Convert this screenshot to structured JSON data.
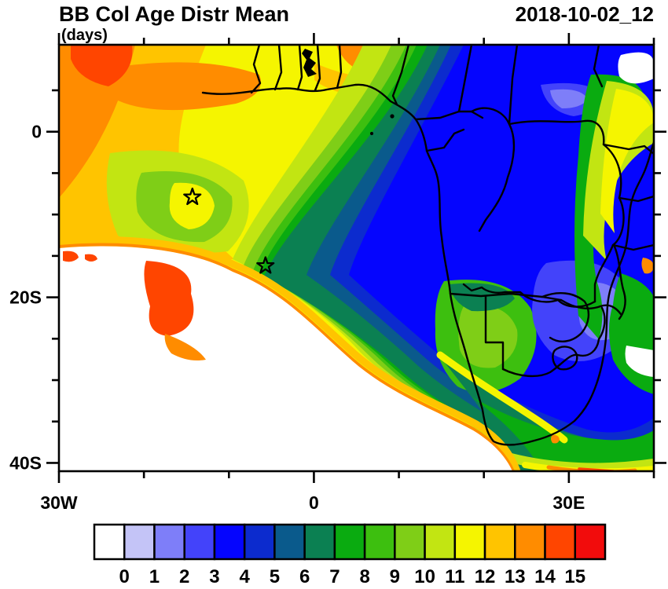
{
  "figure": {
    "title": "BB Col Age Distr Mean",
    "subtitle": "(days)",
    "datetime": "2018-10-02_12"
  },
  "chart_data": {
    "type": "heatmap",
    "subtype": "filled-contour-geographic-map",
    "variable": "BB Col Age Distr Mean",
    "units": "days",
    "timestamp": "2018-10-02_12",
    "map_region": "Southern Africa and tropical Atlantic / Gulf of Guinea",
    "lon_range_deg": [
      -30,
      40
    ],
    "lat_range_deg": [
      -41,
      10.5
    ],
    "grid": "off",
    "x_axis": {
      "ticks": [
        {
          "lon": -30,
          "label": "30W",
          "major": true
        },
        {
          "lon": -20,
          "label": "",
          "major": false
        },
        {
          "lon": -10,
          "label": "",
          "major": false
        },
        {
          "lon": 0,
          "label": "0",
          "major": true
        },
        {
          "lon": 10,
          "label": "",
          "major": false
        },
        {
          "lon": 20,
          "label": "",
          "major": false
        },
        {
          "lon": 30,
          "label": "30E",
          "major": true
        },
        {
          "lon": 40,
          "label": "",
          "major": false
        }
      ]
    },
    "y_axis": {
      "ticks": [
        {
          "lat": 5,
          "label": "",
          "major": false
        },
        {
          "lat": 0,
          "label": "0",
          "major": true
        },
        {
          "lat": -5,
          "label": "",
          "major": false
        },
        {
          "lat": -10,
          "label": "",
          "major": false
        },
        {
          "lat": -15,
          "label": "",
          "major": false
        },
        {
          "lat": -20,
          "label": "20S",
          "major": true
        },
        {
          "lat": -25,
          "label": "",
          "major": false
        },
        {
          "lat": -30,
          "label": "",
          "major": false
        },
        {
          "lat": -35,
          "label": "",
          "major": false
        },
        {
          "lat": -40,
          "label": "40S",
          "major": true
        }
      ]
    },
    "colorbar": {
      "tick_labels": [
        "0",
        "1",
        "2",
        "3",
        "4",
        "5",
        "6",
        "7",
        "8",
        "9",
        "10",
        "11",
        "12",
        "13",
        "14",
        "15"
      ],
      "levels_days": [
        0,
        1,
        2,
        3,
        4,
        5,
        6,
        7,
        8,
        9,
        10,
        11,
        12,
        13,
        14,
        15
      ],
      "colors": [
        "#ffffff",
        "#c4c4f7",
        "#7e7ef9",
        "#4343fa",
        "#0505fe",
        "#0c2bce",
        "#0a5a8c",
        "#0b8052",
        "#0aab10",
        "#3dbf0f",
        "#7fce17",
        "#c2e512",
        "#f5f500",
        "#ffc400",
        "#ff8c00",
        "#ff4500",
        "#f20c0c"
      ]
    },
    "markers": [
      {
        "symbol": "star",
        "lon": -14.3,
        "lat": -7.9
      },
      {
        "symbol": "star",
        "lon": -5.7,
        "lat": -16.2
      }
    ],
    "features": [
      "Oldest smoke ages (13-15+ days, orange/red) fill the northwest Atlantic corner",
      "Broad yellow band (11-13 days) sweeps through the central tropical Atlantic",
      "Green bands (7-11 days) wrap the plume core west and south of the Angolan coast",
      "Youngest ages (3-5 days, blue) cover the Congo basin and most of the interior continent",
      "Violet patches (1-3 days) over Zimbabwe/Mozambique and northeastern DRC",
      "White (no aged smoke) wedge over the clean southwest/south-central ocean with a sharp orange-red rim (13-15 days) along the plume edge",
      "Orange-red blob on the plume edge near 17W-13W, 16S-24S",
      "White patch near Lake Victoria and a small white pocket off the southeast coast",
      "Yellow-green aged filament (9-12 days) along the East African coast near Kenya",
      "Yellow-to-red streak (11-15 days) hugging the south coast at the bottom edge",
      "Two hollow star markers over the Atlantic at approx 14W,8S and 6W,16S"
    ]
  }
}
